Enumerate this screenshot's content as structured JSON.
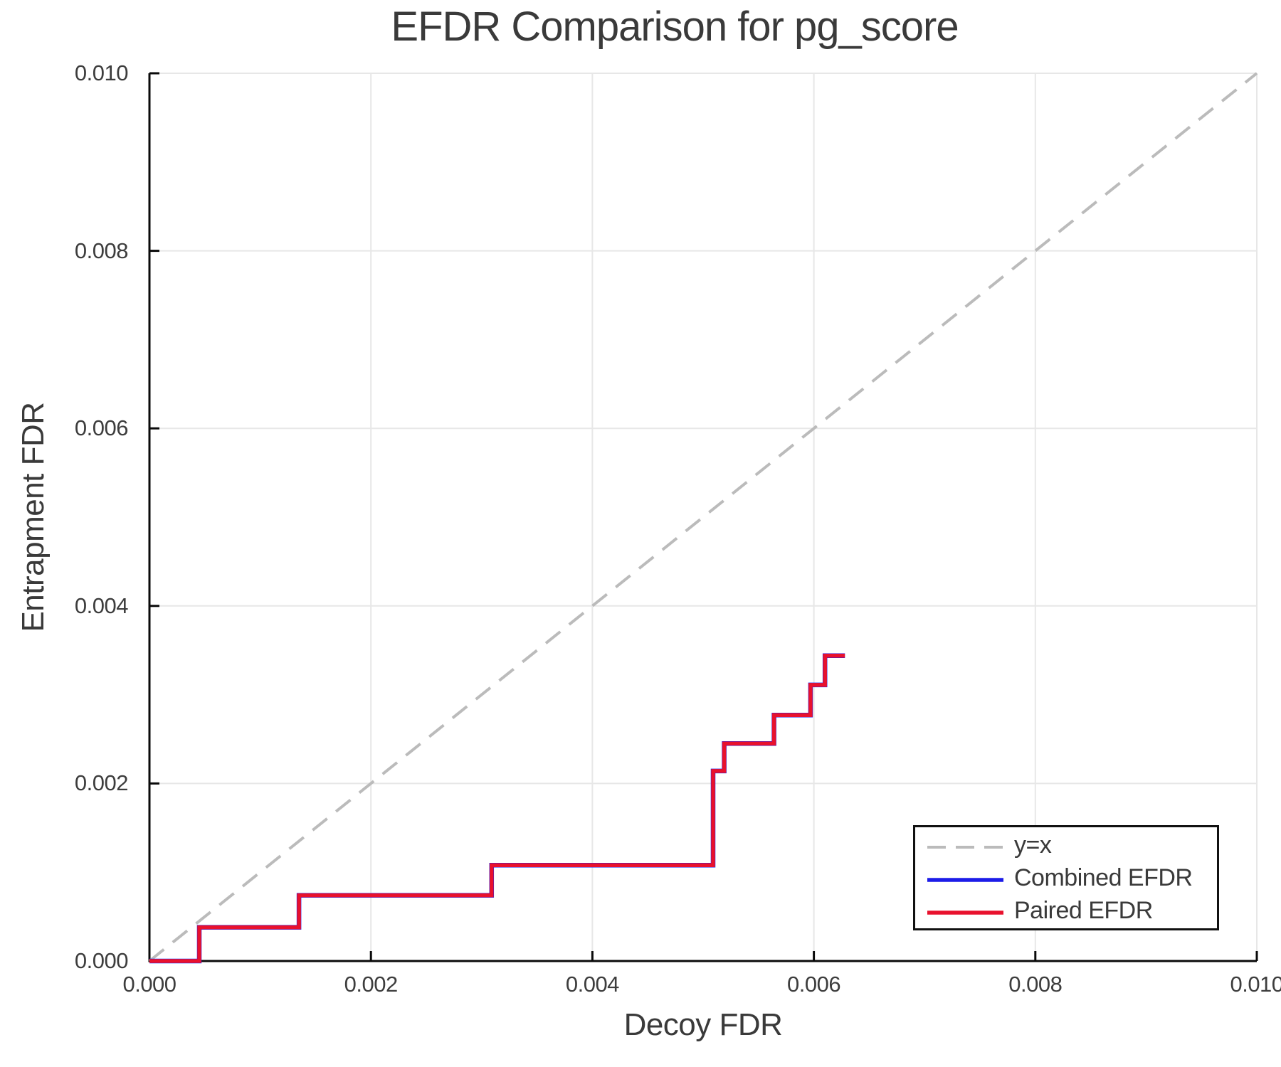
{
  "chart_data": {
    "type": "line",
    "title": "EFDR Comparison for pg_score",
    "xlabel": "Decoy FDR",
    "ylabel": "Entrapment FDR",
    "xlim": [
      0.0,
      0.01
    ],
    "ylim": [
      0.0,
      0.01
    ],
    "grid": true,
    "legend_position": "lower right",
    "x_ticks": {
      "values": [
        0.0,
        0.002,
        0.004,
        0.006,
        0.008,
        0.01
      ],
      "labels": [
        "0.000",
        "0.002",
        "0.004",
        "0.006",
        "0.008",
        "0.010"
      ]
    },
    "y_ticks": {
      "values": [
        0.0,
        0.002,
        0.004,
        0.006,
        0.008,
        0.01
      ],
      "labels": [
        "0.000",
        "0.002",
        "0.004",
        "0.006",
        "0.008",
        "0.010"
      ]
    },
    "series": [
      {
        "name": "y=x",
        "style": "dashed",
        "color": "#bbbbbb",
        "width": 4,
        "points": [
          [
            0.0,
            0.0
          ],
          [
            0.01,
            0.01
          ]
        ]
      },
      {
        "name": "Combined EFDR",
        "style": "solid",
        "color": "#1c1ce8",
        "width": 6.5,
        "points": [
          [
            0.0,
            0.0
          ],
          [
            0.00045,
            0.0
          ],
          [
            0.00045,
            0.00038
          ],
          [
            0.00135,
            0.00038
          ],
          [
            0.00135,
            0.00074
          ],
          [
            0.00309,
            0.00074
          ],
          [
            0.00309,
            0.00108
          ],
          [
            0.00509,
            0.00108
          ],
          [
            0.00509,
            0.00214
          ],
          [
            0.00519,
            0.00214
          ],
          [
            0.00519,
            0.00245
          ],
          [
            0.00564,
            0.00245
          ],
          [
            0.00564,
            0.00277
          ],
          [
            0.00597,
            0.00277
          ],
          [
            0.00597,
            0.00311
          ],
          [
            0.0061,
            0.00311
          ],
          [
            0.0061,
            0.00344
          ],
          [
            0.00628,
            0.00344
          ]
        ]
      },
      {
        "name": "Paired EFDR",
        "style": "solid",
        "color": "#e8112d",
        "width": 5.5,
        "points": [
          [
            0.0,
            0.0
          ],
          [
            0.00045,
            0.0
          ],
          [
            0.00045,
            0.00038
          ],
          [
            0.00135,
            0.00038
          ],
          [
            0.00135,
            0.00074
          ],
          [
            0.00309,
            0.00074
          ],
          [
            0.00309,
            0.00108
          ],
          [
            0.00509,
            0.00108
          ],
          [
            0.00509,
            0.00214
          ],
          [
            0.00519,
            0.00214
          ],
          [
            0.00519,
            0.00245
          ],
          [
            0.00564,
            0.00245
          ],
          [
            0.00564,
            0.00277
          ],
          [
            0.00597,
            0.00277
          ],
          [
            0.00597,
            0.00311
          ],
          [
            0.0061,
            0.00311
          ],
          [
            0.0061,
            0.00344
          ],
          [
            0.00628,
            0.00344
          ]
        ]
      }
    ]
  },
  "style_colors": {
    "grid": "#e7e7e7",
    "spine": "#0a0a0a",
    "text": "#3a3a3a"
  }
}
